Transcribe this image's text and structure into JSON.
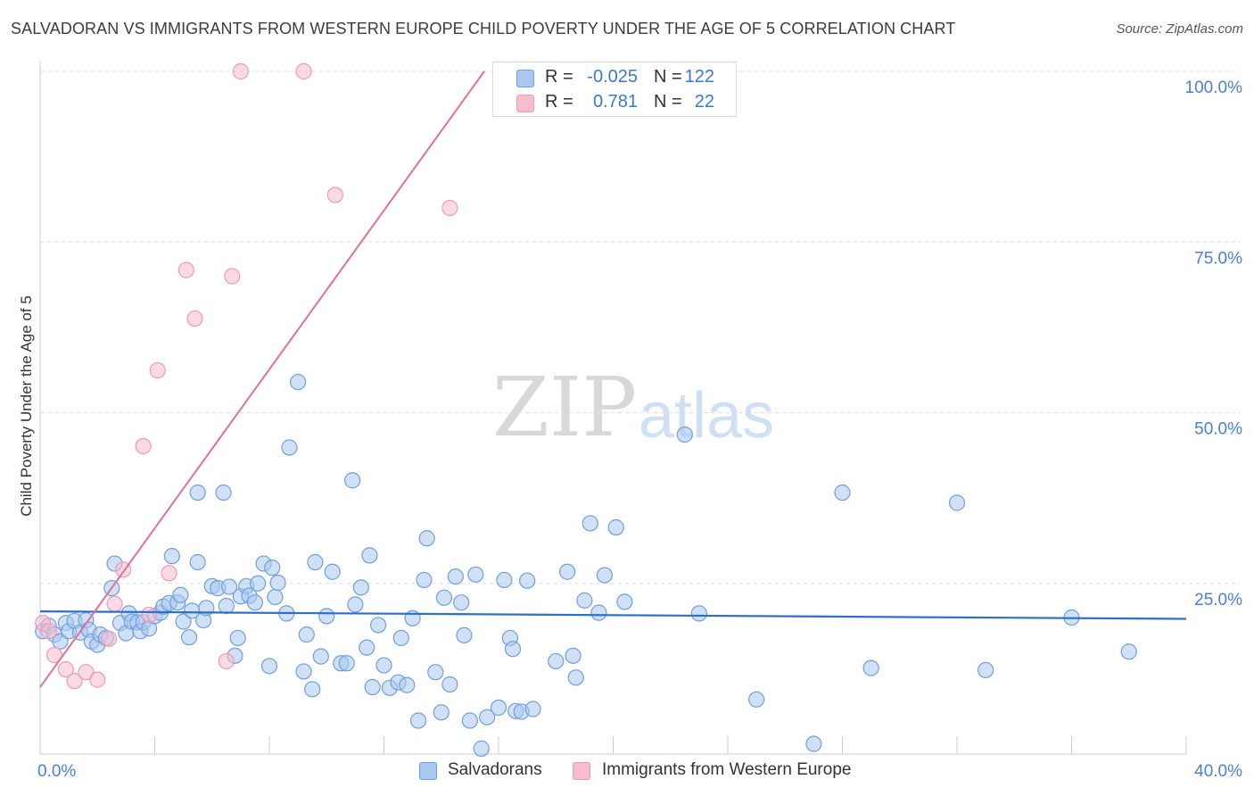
{
  "title": "SALVADORAN VS IMMIGRANTS FROM WESTERN EUROPE CHILD POVERTY UNDER THE AGE OF 5 CORRELATION CHART",
  "source": "Source: ZipAtlas.com",
  "watermark": {
    "zip": "ZIP",
    "atlas": "atlas"
  },
  "legend": {
    "rows": [
      {
        "r_label": "R =",
        "r_value": "-0.025",
        "n_label": "N =",
        "n_value": "122",
        "color": "#a9c8f0"
      },
      {
        "r_label": "R =",
        "r_value": "0.781",
        "n_label": "N =",
        "n_value": "22",
        "color": "#f7bccd"
      }
    ]
  },
  "bottom_legend": {
    "salvadorans": "Salvadorans",
    "immigrants": "Immigrants from Western Europe"
  },
  "chart_data": {
    "type": "scatter",
    "title": "SALVADORAN VS IMMIGRANTS FROM WESTERN EUROPE CHILD POVERTY UNDER THE AGE OF 5 CORRELATION CHART",
    "xlabel": "",
    "ylabel": "Child Poverty Under the Age of 5",
    "xlim": [
      0,
      40
    ],
    "ylim": [
      0,
      100
    ],
    "x_tick_labels": [
      "0.0%",
      "40.0%"
    ],
    "y_tick_labels": [
      "25.0%",
      "50.0%",
      "75.0%",
      "100.0%"
    ],
    "y_ticks": [
      25,
      50,
      75,
      100
    ],
    "grid": true,
    "colors": {
      "salvadorans": "#a9c8f0",
      "salvadorans_edge": "#6f9fdc",
      "salvadorans_line": "#2e6fcb",
      "immigrants": "#f7bccd",
      "immigrants_edge": "#ee9ab4",
      "immigrants_line": "#e0709a"
    },
    "series": [
      {
        "name": "Salvadorans",
        "trend": {
          "x": [
            0,
            40
          ],
          "y": [
            20.9,
            19.8
          ]
        },
        "points": [
          [
            0.1,
            18.0
          ],
          [
            0.3,
            18.8
          ],
          [
            0.5,
            17.5
          ],
          [
            0.7,
            16.5
          ],
          [
            0.9,
            19.2
          ],
          [
            1.0,
            18.0
          ],
          [
            1.2,
            19.5
          ],
          [
            1.4,
            17.8
          ],
          [
            1.6,
            19.6
          ],
          [
            1.7,
            18.2
          ],
          [
            1.8,
            16.5
          ],
          [
            2.0,
            16.0
          ],
          [
            2.1,
            17.5
          ],
          [
            2.3,
            17.0
          ],
          [
            2.5,
            24.3
          ],
          [
            2.6,
            27.9
          ],
          [
            2.8,
            19.2
          ],
          [
            3.0,
            17.7
          ],
          [
            3.1,
            20.6
          ],
          [
            3.2,
            19.4
          ],
          [
            3.4,
            19.3
          ],
          [
            3.5,
            18.0
          ],
          [
            3.6,
            19.3
          ],
          [
            3.8,
            18.4
          ],
          [
            4.0,
            20.2
          ],
          [
            4.2,
            20.7
          ],
          [
            4.3,
            21.6
          ],
          [
            4.5,
            22.1
          ],
          [
            4.6,
            29.0
          ],
          [
            4.8,
            22.2
          ],
          [
            4.9,
            23.3
          ],
          [
            5.0,
            19.4
          ],
          [
            5.2,
            17.1
          ],
          [
            5.3,
            21.0
          ],
          [
            5.5,
            28.1
          ],
          [
            5.5,
            38.3
          ],
          [
            5.7,
            19.6
          ],
          [
            5.8,
            21.4
          ],
          [
            6.0,
            24.6
          ],
          [
            6.2,
            24.3
          ],
          [
            6.4,
            38.3
          ],
          [
            6.5,
            21.7
          ],
          [
            6.6,
            24.5
          ],
          [
            6.8,
            14.4
          ],
          [
            6.9,
            17.0
          ],
          [
            7.0,
            23.1
          ],
          [
            7.2,
            24.6
          ],
          [
            7.3,
            23.2
          ],
          [
            7.5,
            22.2
          ],
          [
            7.6,
            25.0
          ],
          [
            7.8,
            27.9
          ],
          [
            8.0,
            12.9
          ],
          [
            8.1,
            27.3
          ],
          [
            8.2,
            23.0
          ],
          [
            8.3,
            25.1
          ],
          [
            8.6,
            20.6
          ],
          [
            8.7,
            44.9
          ],
          [
            9.0,
            54.5
          ],
          [
            9.2,
            12.1
          ],
          [
            9.3,
            17.5
          ],
          [
            9.5,
            9.5
          ],
          [
            9.6,
            28.1
          ],
          [
            9.8,
            14.3
          ],
          [
            10.0,
            20.2
          ],
          [
            10.2,
            26.7
          ],
          [
            10.5,
            13.3
          ],
          [
            10.7,
            13.3
          ],
          [
            10.9,
            40.1
          ],
          [
            11.0,
            21.9
          ],
          [
            11.2,
            24.4
          ],
          [
            11.4,
            15.6
          ],
          [
            11.5,
            29.1
          ],
          [
            11.6,
            9.8
          ],
          [
            11.8,
            18.9
          ],
          [
            12.0,
            13.0
          ],
          [
            12.2,
            9.7
          ],
          [
            12.5,
            10.5
          ],
          [
            12.6,
            17.0
          ],
          [
            12.8,
            10.1
          ],
          [
            13.0,
            19.9
          ],
          [
            13.2,
            4.9
          ],
          [
            13.4,
            25.5
          ],
          [
            13.5,
            31.6
          ],
          [
            13.8,
            12.0
          ],
          [
            14.0,
            6.1
          ],
          [
            14.1,
            22.9
          ],
          [
            14.3,
            10.2
          ],
          [
            14.5,
            26.0
          ],
          [
            14.7,
            22.2
          ],
          [
            14.8,
            17.4
          ],
          [
            15.0,
            4.9
          ],
          [
            15.2,
            26.3
          ],
          [
            15.4,
            0.8
          ],
          [
            15.6,
            5.4
          ],
          [
            16.0,
            6.8
          ],
          [
            16.2,
            25.5
          ],
          [
            16.4,
            17.0
          ],
          [
            16.5,
            15.4
          ],
          [
            16.6,
            6.3
          ],
          [
            16.8,
            6.2
          ],
          [
            17.0,
            25.4
          ],
          [
            17.2,
            6.6
          ],
          [
            18.0,
            13.6
          ],
          [
            18.4,
            26.7
          ],
          [
            18.6,
            14.4
          ],
          [
            18.7,
            11.2
          ],
          [
            19.0,
            22.5
          ],
          [
            19.2,
            33.8
          ],
          [
            19.5,
            20.7
          ],
          [
            19.7,
            26.2
          ],
          [
            20.1,
            33.2
          ],
          [
            20.4,
            22.3
          ],
          [
            22.5,
            46.8
          ],
          [
            23.0,
            20.6
          ],
          [
            25.0,
            8.0
          ],
          [
            27.0,
            1.5
          ],
          [
            28.0,
            38.3
          ],
          [
            29.0,
            12.6
          ],
          [
            32.0,
            36.8
          ],
          [
            33.0,
            12.3
          ],
          [
            36.0,
            20.0
          ],
          [
            38.0,
            15.0
          ]
        ]
      },
      {
        "name": "Immigrants from Western Europe",
        "trend": {
          "x": [
            0,
            15.5
          ],
          "y": [
            9.8,
            100
          ]
        },
        "points": [
          [
            0.1,
            19.2
          ],
          [
            0.3,
            18.0
          ],
          [
            0.5,
            14.5
          ],
          [
            0.9,
            12.4
          ],
          [
            1.2,
            10.7
          ],
          [
            1.6,
            12.0
          ],
          [
            2.0,
            10.9
          ],
          [
            2.4,
            16.9
          ],
          [
            2.6,
            22.0
          ],
          [
            2.9,
            27.0
          ],
          [
            3.6,
            45.1
          ],
          [
            3.8,
            20.4
          ],
          [
            4.1,
            56.2
          ],
          [
            4.5,
            26.5
          ],
          [
            5.1,
            70.9
          ],
          [
            5.4,
            63.8
          ],
          [
            6.5,
            13.6
          ],
          [
            6.7,
            70.0
          ],
          [
            7.0,
            100.0
          ],
          [
            9.2,
            100.0
          ],
          [
            10.3,
            81.9
          ],
          [
            14.3,
            80.0
          ]
        ]
      }
    ]
  }
}
